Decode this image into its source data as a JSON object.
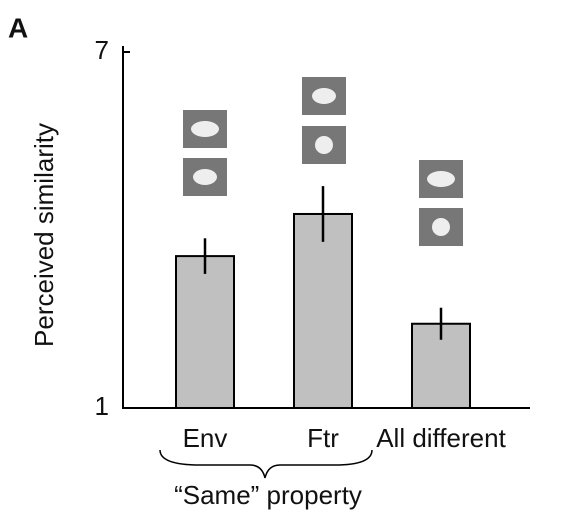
{
  "chart_data": {
    "type": "bar",
    "panel_label": "A",
    "ylabel": "Perceived similarity",
    "categories": [
      "Env",
      "Ftr",
      "All different"
    ],
    "values": [
      3.56,
      4.27,
      2.42
    ],
    "errors": [
      0.3,
      0.47,
      0.27
    ],
    "group_label": "“Same” property",
    "color": "#c0c0c0",
    "ylim": [
      1,
      7
    ],
    "yticks": [
      1,
      7
    ]
  }
}
